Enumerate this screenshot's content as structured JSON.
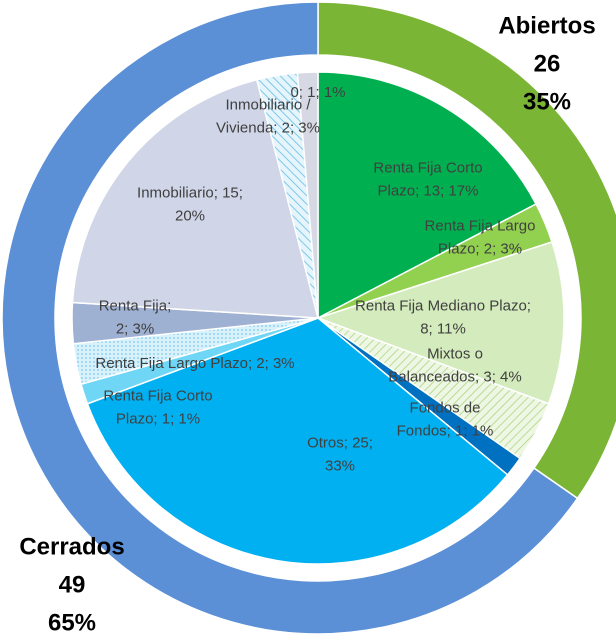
{
  "chart_data": {
    "type": "nested-pie",
    "outer": [
      {
        "label_lines": [
          "Abiertos",
          "26",
          "35%"
        ],
        "value": 26,
        "color": "#7ab535"
      },
      {
        "label_lines": [
          "Cerrados",
          "49",
          "65%"
        ],
        "value": 49,
        "color": "#5b8fd6"
      }
    ],
    "inner": [
      {
        "label_lines": [
          "Renta Fija Corto",
          "Plazo; 13; 17%"
        ],
        "value": 13,
        "color": "#00b050"
      },
      {
        "label_lines": [
          "Renta Fija Largo",
          "Plazo; 2; 3%"
        ],
        "value": 2,
        "color": "#92d050"
      },
      {
        "label_lines": [
          "Renta Fija Mediano Plazo;",
          "8; 11%"
        ],
        "value": 8,
        "color": "#d4ecbd"
      },
      {
        "label_lines": [
          "Mixtos o",
          "Balanceados; 3; 4%"
        ],
        "value": 3,
        "color": "url(#hatchGreen)"
      },
      {
        "label_lines": [
          "Fondos de",
          "Fondos; 1; 1%"
        ],
        "value": 1,
        "color": "#0070c0"
      },
      {
        "label_lines": [
          "Otros; 25;",
          "33%"
        ],
        "value": 25,
        "color": "#00b0f0"
      },
      {
        "label_lines": [
          "Renta Fija Corto",
          "Plazo; 1; 1%"
        ],
        "value": 1,
        "color": "#6fd6f5"
      },
      {
        "label_lines": [
          "Renta Fija Largo Plazo; 2; 3%"
        ],
        "value": 2,
        "color": "url(#dotsBlue)"
      },
      {
        "label_lines": [
          "Renta Fija;",
          "2; 3%"
        ],
        "value": 2,
        "color": "#9fb1d3"
      },
      {
        "label_lines": [
          "Inmobiliario; 15;",
          "20%"
        ],
        "value": 15,
        "color": "#d0d6e8"
      },
      {
        "label_lines": [
          "Inmobiliario /",
          "Vivienda; 2; 3%"
        ],
        "value": 2,
        "color": "url(#hatchBlue)"
      },
      {
        "label_lines": [
          "0; 1; 1%"
        ],
        "value": 1,
        "color": "#d6d9e4"
      }
    ]
  }
}
